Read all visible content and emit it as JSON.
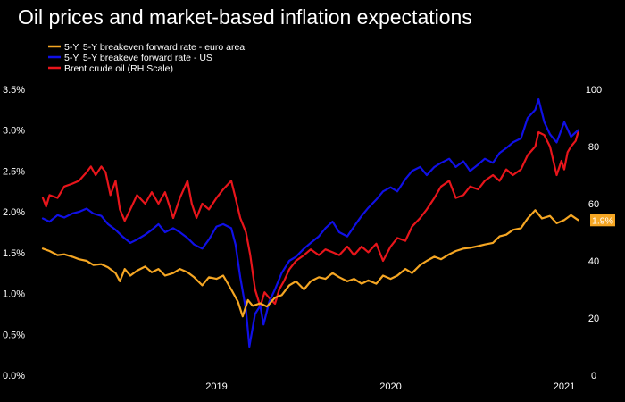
{
  "chart_data": {
    "type": "line",
    "title": "Oil prices and market-based inflation expectations",
    "x_ticks": [
      "2019",
      "2020",
      "2021"
    ],
    "y_left": {
      "ylim": [
        0,
        3.5
      ],
      "ticks": [
        "0.0%",
        "0.5%",
        "1.0%",
        "1.5%",
        "2.0%",
        "2.5%",
        "3.0%",
        "3.5%"
      ]
    },
    "y_right": {
      "ylim": [
        0,
        100
      ],
      "ticks": [
        "0",
        "20",
        "40",
        "60",
        "80",
        "100"
      ]
    },
    "legend": {
      "position": "top-left",
      "entries": [
        "5-Y, 5-Y breakeven forward rate - euro area",
        "5-Y, 5-Y breakeve forward rate - US",
        "Brent crude oil (RH Scale)"
      ]
    },
    "end_label": "1.9%",
    "grid": false,
    "x_date_range": [
      "2018-07",
      "2021-07"
    ],
    "series": [
      {
        "name": "5-Y, 5-Y breakeven forward rate - euro area",
        "color": "#f5a623",
        "axis": "left",
        "points": [
          [
            "2018-07-01",
            1.55
          ],
          [
            "2018-07-15",
            1.52
          ],
          [
            "2018-08-01",
            1.47
          ],
          [
            "2018-08-15",
            1.48
          ],
          [
            "2018-09-01",
            1.45
          ],
          [
            "2018-09-15",
            1.42
          ],
          [
            "2018-10-01",
            1.4
          ],
          [
            "2018-10-15",
            1.35
          ],
          [
            "2018-11-01",
            1.36
          ],
          [
            "2018-11-15",
            1.32
          ],
          [
            "2018-12-01",
            1.25
          ],
          [
            "2018-12-10",
            1.15
          ],
          [
            "2018-12-20",
            1.3
          ],
          [
            "2019-01-01",
            1.22
          ],
          [
            "2019-01-15",
            1.28
          ],
          [
            "2019-02-01",
            1.33
          ],
          [
            "2019-02-15",
            1.26
          ],
          [
            "2019-03-01",
            1.3
          ],
          [
            "2019-03-15",
            1.22
          ],
          [
            "2019-04-01",
            1.25
          ],
          [
            "2019-04-15",
            1.3
          ],
          [
            "2019-05-01",
            1.26
          ],
          [
            "2019-05-15",
            1.2
          ],
          [
            "2019-06-01",
            1.1
          ],
          [
            "2019-06-15",
            1.2
          ],
          [
            "2019-07-01",
            1.18
          ],
          [
            "2019-07-15",
            1.22
          ],
          [
            "2019-08-01",
            1.05
          ],
          [
            "2019-08-15",
            0.9
          ],
          [
            "2019-08-25",
            0.72
          ],
          [
            "2019-09-05",
            0.92
          ],
          [
            "2019-09-15",
            0.85
          ],
          [
            "2019-10-01",
            0.88
          ],
          [
            "2019-10-15",
            0.84
          ],
          [
            "2019-11-01",
            0.95
          ],
          [
            "2019-11-15",
            0.98
          ],
          [
            "2019-12-01",
            1.1
          ],
          [
            "2019-12-15",
            1.15
          ],
          [
            "2020-01-01",
            1.05
          ],
          [
            "2020-01-15",
            1.15
          ],
          [
            "2020-02-01",
            1.2
          ],
          [
            "2020-02-15",
            1.18
          ],
          [
            "2020-03-01",
            1.25
          ],
          [
            "2020-03-15",
            1.2
          ],
          [
            "2020-04-01",
            1.15
          ],
          [
            "2020-04-15",
            1.18
          ],
          [
            "2020-05-01",
            1.12
          ],
          [
            "2020-05-15",
            1.16
          ],
          [
            "2020-06-01",
            1.12
          ],
          [
            "2020-06-15",
            1.22
          ],
          [
            "2020-07-01",
            1.18
          ],
          [
            "2020-07-15",
            1.22
          ],
          [
            "2020-08-01",
            1.3
          ],
          [
            "2020-08-15",
            1.25
          ],
          [
            "2020-09-01",
            1.35
          ],
          [
            "2020-09-15",
            1.4
          ],
          [
            "2020-10-01",
            1.45
          ],
          [
            "2020-10-15",
            1.42
          ],
          [
            "2020-11-01",
            1.48
          ],
          [
            "2020-11-15",
            1.52
          ],
          [
            "2020-12-01",
            1.55
          ],
          [
            "2020-12-15",
            1.56
          ],
          [
            "2021-01-01",
            1.58
          ],
          [
            "2021-01-15",
            1.6
          ],
          [
            "2021-02-01",
            1.62
          ],
          [
            "2021-02-15",
            1.7
          ],
          [
            "2021-03-01",
            1.72
          ],
          [
            "2021-03-15",
            1.78
          ],
          [
            "2021-04-01",
            1.8
          ],
          [
            "2021-04-15",
            1.92
          ],
          [
            "2021-05-01",
            2.02
          ],
          [
            "2021-05-15",
            1.92
          ],
          [
            "2021-06-01",
            1.95
          ],
          [
            "2021-06-15",
            1.86
          ],
          [
            "2021-07-01",
            1.9
          ],
          [
            "2021-07-15",
            1.96
          ],
          [
            "2021-07-30",
            1.9
          ]
        ]
      },
      {
        "name": "5-Y, 5-Y breakeve forward rate - US",
        "color": "#1010e6",
        "axis": "left",
        "points": [
          [
            "2018-07-01",
            1.92
          ],
          [
            "2018-07-15",
            1.88
          ],
          [
            "2018-08-01",
            1.96
          ],
          [
            "2018-08-15",
            1.93
          ],
          [
            "2018-09-01",
            1.98
          ],
          [
            "2018-09-15",
            2.0
          ],
          [
            "2018-10-01",
            2.04
          ],
          [
            "2018-10-15",
            1.98
          ],
          [
            "2018-11-01",
            1.95
          ],
          [
            "2018-11-15",
            1.85
          ],
          [
            "2018-12-01",
            1.78
          ],
          [
            "2018-12-15",
            1.7
          ],
          [
            "2019-01-01",
            1.62
          ],
          [
            "2019-01-15",
            1.66
          ],
          [
            "2019-02-01",
            1.72
          ],
          [
            "2019-02-15",
            1.78
          ],
          [
            "2019-03-01",
            1.85
          ],
          [
            "2019-03-15",
            1.75
          ],
          [
            "2019-04-01",
            1.8
          ],
          [
            "2019-04-15",
            1.75
          ],
          [
            "2019-05-01",
            1.68
          ],
          [
            "2019-05-15",
            1.6
          ],
          [
            "2019-06-01",
            1.55
          ],
          [
            "2019-06-15",
            1.66
          ],
          [
            "2019-07-01",
            1.82
          ],
          [
            "2019-07-15",
            1.85
          ],
          [
            "2019-08-01",
            1.8
          ],
          [
            "2019-08-10",
            1.6
          ],
          [
            "2019-08-20",
            1.2
          ],
          [
            "2019-09-01",
            0.8
          ],
          [
            "2019-09-08",
            0.35
          ],
          [
            "2019-09-20",
            0.75
          ],
          [
            "2019-10-01",
            0.85
          ],
          [
            "2019-10-08",
            0.62
          ],
          [
            "2019-10-20",
            0.9
          ],
          [
            "2019-11-01",
            1.05
          ],
          [
            "2019-11-15",
            1.25
          ],
          [
            "2019-12-01",
            1.4
          ],
          [
            "2019-12-15",
            1.45
          ],
          [
            "2020-01-01",
            1.55
          ],
          [
            "2020-01-15",
            1.62
          ],
          [
            "2020-02-01",
            1.7
          ],
          [
            "2020-02-15",
            1.8
          ],
          [
            "2020-03-01",
            1.88
          ],
          [
            "2020-03-15",
            1.75
          ],
          [
            "2020-04-01",
            1.7
          ],
          [
            "2020-04-15",
            1.82
          ],
          [
            "2020-05-01",
            1.95
          ],
          [
            "2020-05-15",
            2.05
          ],
          [
            "2020-06-01",
            2.15
          ],
          [
            "2020-06-15",
            2.25
          ],
          [
            "2020-07-01",
            2.3
          ],
          [
            "2020-07-15",
            2.25
          ],
          [
            "2020-08-01",
            2.4
          ],
          [
            "2020-08-15",
            2.5
          ],
          [
            "2020-09-01",
            2.55
          ],
          [
            "2020-09-15",
            2.45
          ],
          [
            "2020-10-01",
            2.55
          ],
          [
            "2020-10-15",
            2.6
          ],
          [
            "2020-11-01",
            2.65
          ],
          [
            "2020-11-15",
            2.55
          ],
          [
            "2020-12-01",
            2.62
          ],
          [
            "2020-12-15",
            2.5
          ],
          [
            "2021-01-01",
            2.58
          ],
          [
            "2021-01-15",
            2.65
          ],
          [
            "2021-02-01",
            2.6
          ],
          [
            "2021-02-15",
            2.72
          ],
          [
            "2021-03-01",
            2.78
          ],
          [
            "2021-03-15",
            2.85
          ],
          [
            "2021-04-01",
            2.9
          ],
          [
            "2021-04-15",
            3.15
          ],
          [
            "2021-05-01",
            3.25
          ],
          [
            "2021-05-08",
            3.38
          ],
          [
            "2021-05-20",
            3.1
          ],
          [
            "2021-06-01",
            2.95
          ],
          [
            "2021-06-15",
            2.85
          ],
          [
            "2021-07-01",
            3.1
          ],
          [
            "2021-07-15",
            2.92
          ],
          [
            "2021-07-30",
            3.0
          ]
        ]
      },
      {
        "name": "Brent crude oil (RH Scale)",
        "color": "#e8151b",
        "axis": "right",
        "points": [
          [
            "2018-07-01",
            62
          ],
          [
            "2018-07-08",
            59
          ],
          [
            "2018-07-15",
            63
          ],
          [
            "2018-08-01",
            62
          ],
          [
            "2018-08-15",
            66
          ],
          [
            "2018-09-01",
            67
          ],
          [
            "2018-09-15",
            68
          ],
          [
            "2018-10-01",
            71
          ],
          [
            "2018-10-10",
            73
          ],
          [
            "2018-10-20",
            70
          ],
          [
            "2018-11-01",
            73
          ],
          [
            "2018-11-10",
            71
          ],
          [
            "2018-11-20",
            63
          ],
          [
            "2018-12-01",
            68
          ],
          [
            "2018-12-10",
            58
          ],
          [
            "2018-12-20",
            54
          ],
          [
            "2019-01-01",
            58
          ],
          [
            "2019-01-15",
            63
          ],
          [
            "2019-02-01",
            60
          ],
          [
            "2019-02-15",
            64
          ],
          [
            "2019-03-01",
            60
          ],
          [
            "2019-03-15",
            64
          ],
          [
            "2019-04-01",
            55
          ],
          [
            "2019-04-15",
            62
          ],
          [
            "2019-05-01",
            68
          ],
          [
            "2019-05-10",
            60
          ],
          [
            "2019-05-20",
            55
          ],
          [
            "2019-06-01",
            60
          ],
          [
            "2019-06-15",
            58
          ],
          [
            "2019-07-01",
            62
          ],
          [
            "2019-07-15",
            65
          ],
          [
            "2019-08-01",
            68
          ],
          [
            "2019-08-10",
            62
          ],
          [
            "2019-08-20",
            55
          ],
          [
            "2019-09-01",
            50
          ],
          [
            "2019-09-10",
            42
          ],
          [
            "2019-09-20",
            30
          ],
          [
            "2019-10-01",
            24
          ],
          [
            "2019-10-10",
            29
          ],
          [
            "2019-10-20",
            27
          ],
          [
            "2019-11-01",
            25
          ],
          [
            "2019-11-10",
            30
          ],
          [
            "2019-11-20",
            33
          ],
          [
            "2019-12-01",
            37
          ],
          [
            "2019-12-15",
            40
          ],
          [
            "2020-01-01",
            42
          ],
          [
            "2020-01-15",
            44
          ],
          [
            "2020-02-01",
            42
          ],
          [
            "2020-02-15",
            44
          ],
          [
            "2020-03-01",
            43
          ],
          [
            "2020-03-15",
            42
          ],
          [
            "2020-04-01",
            45
          ],
          [
            "2020-04-15",
            42
          ],
          [
            "2020-05-01",
            45
          ],
          [
            "2020-05-15",
            43
          ],
          [
            "2020-06-01",
            46
          ],
          [
            "2020-06-15",
            40
          ],
          [
            "2020-07-01",
            45
          ],
          [
            "2020-07-15",
            48
          ],
          [
            "2020-08-01",
            47
          ],
          [
            "2020-08-15",
            52
          ],
          [
            "2020-09-01",
            55
          ],
          [
            "2020-09-15",
            58
          ],
          [
            "2020-10-01",
            62
          ],
          [
            "2020-10-15",
            66
          ],
          [
            "2020-11-01",
            68
          ],
          [
            "2020-11-15",
            62
          ],
          [
            "2020-12-01",
            63
          ],
          [
            "2020-12-15",
            66
          ],
          [
            "2021-01-01",
            65
          ],
          [
            "2021-01-15",
            68
          ],
          [
            "2021-02-01",
            70
          ],
          [
            "2021-02-15",
            68
          ],
          [
            "2021-03-01",
            72
          ],
          [
            "2021-03-15",
            70
          ],
          [
            "2021-04-01",
            72
          ],
          [
            "2021-04-15",
            77
          ],
          [
            "2021-05-01",
            80
          ],
          [
            "2021-05-08",
            85
          ],
          [
            "2021-05-20",
            84
          ],
          [
            "2021-06-01",
            80
          ],
          [
            "2021-06-15",
            70
          ],
          [
            "2021-06-25",
            75
          ],
          [
            "2021-07-01",
            72
          ],
          [
            "2021-07-08",
            78
          ],
          [
            "2021-07-15",
            80
          ],
          [
            "2021-07-25",
            82
          ],
          [
            "2021-07-30",
            85
          ]
        ]
      }
    ]
  }
}
